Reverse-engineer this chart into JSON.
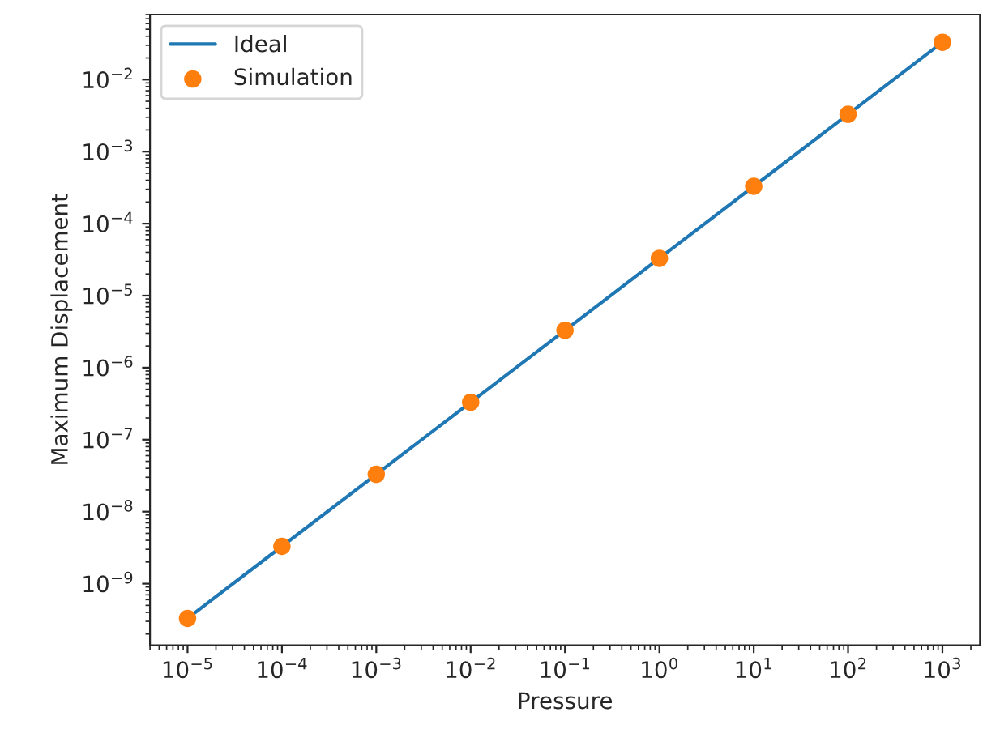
{
  "chart_data": {
    "type": "line",
    "xlabel": "Pressure",
    "ylabel": "Maximum Displacement",
    "log": "xy",
    "legend": "top left",
    "x": [
      1e-05,
      0.0001,
      0.001,
      0.01,
      0.1,
      1,
      10,
      100,
      1000
    ],
    "series": [
      {
        "name": "Ideal",
        "color": "#1f77b4",
        "marker": "none",
        "values": [
          3.3e-10,
          3.3e-09,
          3.3e-08,
          3.3e-07,
          3.3e-06,
          3.3e-05,
          0.00033,
          0.0033,
          0.033
        ]
      },
      {
        "name": "Simulation",
        "type": "scatter",
        "color": "#ff7f0e",
        "marker": "circle",
        "values": [
          3.3e-10,
          3.3e-09,
          3.3e-08,
          3.3e-07,
          3.3e-06,
          3.3e-05,
          0.00033,
          0.0033,
          0.033
        ]
      }
    ],
    "xlim": [
      4e-06,
      2500.0
    ],
    "ylim": [
      1.4e-10,
      0.08
    ],
    "xticks": [
      {
        "value": 1e-05,
        "label": "10$^{−5}$"
      },
      {
        "value": 0.0001,
        "label": "10$^{−4}$"
      },
      {
        "value": 0.001,
        "label": "10$^{−3}$"
      },
      {
        "value": 0.01,
        "label": "10$^{−2}$"
      },
      {
        "value": 0.1,
        "label": "10$^{−1}$"
      },
      {
        "value": 1,
        "label": "10$^{0}$"
      },
      {
        "value": 10,
        "label": "10$^{1}$"
      },
      {
        "value": 100,
        "label": "10$^{2}$"
      },
      {
        "value": 1000,
        "label": "10$^{3}$"
      }
    ],
    "yticks": [
      {
        "value": 1e-09,
        "label": "10$^{−9}$"
      },
      {
        "value": 1e-08,
        "label": "10$^{−8}$"
      },
      {
        "value": 1e-07,
        "label": "10$^{−7}$"
      },
      {
        "value": 1e-06,
        "label": "10$^{−6}$"
      },
      {
        "value": 1e-05,
        "label": "10$^{−5}$"
      },
      {
        "value": 0.0001,
        "label": "10$^{−4}$"
      },
      {
        "value": 0.001,
        "label": "10$^{−3}$"
      },
      {
        "value": 0.01,
        "label": "10$^{−2}$"
      }
    ],
    "grid": false
  }
}
